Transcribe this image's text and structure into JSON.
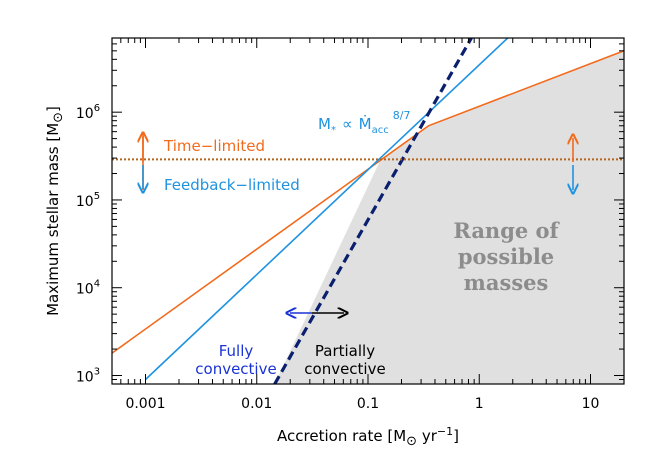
{
  "chart_data": {
    "type": "line",
    "xlabel": "Accretion rate [M⊙ yr⁻¹]",
    "ylabel": "Maximum stellar mass [M⊙]",
    "xscale": "log",
    "yscale": "log",
    "xlim": [
      0.0005,
      20
    ],
    "ylim": [
      800,
      7000000
    ],
    "x_ticks": [
      {
        "value": 0.001,
        "label": "0.001"
      },
      {
        "value": 0.01,
        "label": "0.01"
      },
      {
        "value": 0.1,
        "label": "0.1"
      },
      {
        "value": 1,
        "label": "1"
      },
      {
        "value": 10,
        "label": "10"
      }
    ],
    "y_ticks": [
      {
        "value": 1000,
        "base": "10",
        "exp": "3"
      },
      {
        "value": 10000,
        "base": "10",
        "exp": "4"
      },
      {
        "value": 100000,
        "base": "10",
        "exp": "5"
      },
      {
        "value": 1000000,
        "base": "10",
        "exp": "6"
      }
    ],
    "series": [
      {
        "key": "time_limited",
        "color": "#f26b1d",
        "dash": "solid",
        "points": [
          [
            0.0005,
            1800
          ],
          [
            0.35,
            700000
          ],
          [
            20,
            5000000
          ]
        ]
      },
      {
        "key": "feedback_limited",
        "color": "#1f93e0",
        "dash": "solid",
        "points": [
          [
            0.001,
            900
          ],
          [
            1.8,
            7000000
          ]
        ]
      },
      {
        "key": "fully_partially_convective_boundary",
        "color": "#0a1f6e",
        "dash": "dashed",
        "points": [
          [
            0.0145,
            800
          ],
          [
            0.85,
            7000000
          ]
        ]
      },
      {
        "key": "time_feedback_transition",
        "color": "#b5651d",
        "dash": "dotted",
        "points": [
          [
            0.0005,
            290000
          ],
          [
            20,
            290000
          ]
        ]
      }
    ],
    "shaded_region": {
      "label_lines": [
        "Range of",
        "possible",
        "masses"
      ],
      "color": "#e0e0e0",
      "boundary": [
        [
          0.0145,
          800
        ],
        [
          0.13,
          290000
        ],
        [
          0.35,
          700000
        ],
        [
          20,
          5000000
        ],
        [
          20,
          800
        ]
      ]
    },
    "annotations": {
      "time_limited": "Time−limited",
      "feedback_limited": "Feedback−limited",
      "formula_main": "M",
      "formula_sub": "*",
      "formula_prop": "∝",
      "formula_mdot": "Ṁ",
      "formula_mdot_sub": "acc",
      "formula_exp": "8/7",
      "fully_line1": "Fully",
      "fully_line2": "convective",
      "partially_line1": "Partially",
      "partially_line2": "convective"
    },
    "colors": {
      "orange": "#f26b1d",
      "light_blue": "#1f93e0",
      "navy": "#0a1f6e",
      "dark_blue": "#1a33d6",
      "dotted": "#b5651d",
      "shade": "#e0e0e0"
    },
    "grid": false
  }
}
